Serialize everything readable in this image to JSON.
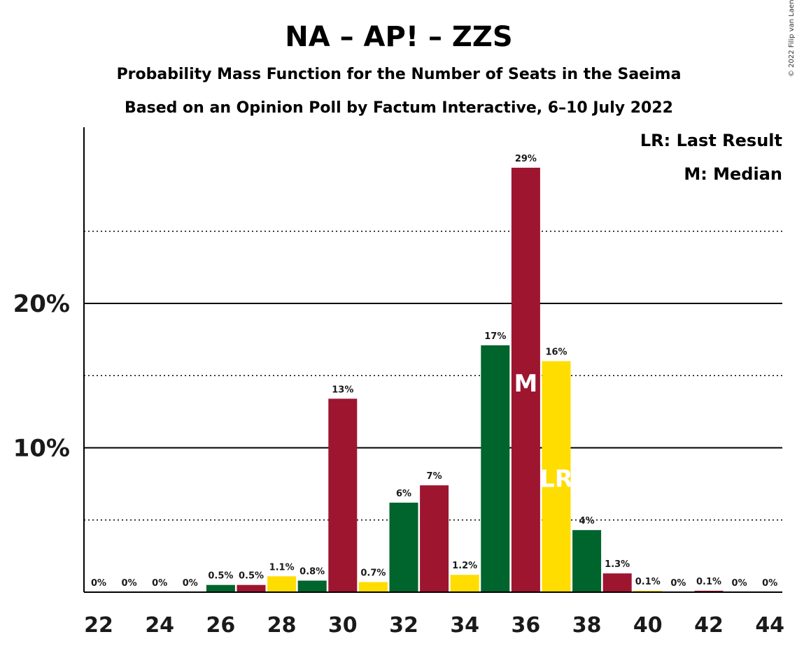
{
  "title": "NA – AP! – ZZS",
  "subtitle1": "Probability Mass Function for the Number of Seats in the Saeima",
  "subtitle2": "Based on an Opinion Poll by Factum Interactive, 6–10 July 2022",
  "copyright": "© 2022 Filip van Laenen",
  "legend": {
    "lr": "LR: Last Result",
    "m": "M: Median"
  },
  "colors": {
    "green": "#00642D",
    "red": "#9E1530",
    "yellow": "#FFDD00",
    "axis": "#000000",
    "grid": "#000000"
  },
  "chart_data": {
    "type": "bar",
    "x": [
      22,
      23,
      24,
      25,
      26,
      27,
      28,
      29,
      30,
      31,
      32,
      33,
      34,
      35,
      36,
      37,
      38,
      39,
      40,
      41,
      42,
      43,
      44
    ],
    "values": [
      0,
      0,
      0,
      0,
      0.5,
      0.5,
      1.1,
      0.8,
      13.4,
      0.7,
      6.2,
      7.4,
      1.2,
      17.1,
      29.4,
      16,
      4.3,
      1.3,
      0.1,
      0,
      0.1,
      0,
      0
    ],
    "labels": [
      "0%",
      "0%",
      "0%",
      "0%",
      "0.5%",
      "0.5%",
      "1.1%",
      "0.8%",
      "13%",
      "0.7%",
      "6%",
      "7%",
      "1.2%",
      "17%",
      "29%",
      "16%",
      "4%",
      "1.3%",
      "0.1%",
      "0%",
      "0.1%",
      "0%",
      "0%"
    ],
    "bar_colors": [
      "green",
      "red",
      "yellow",
      "green",
      "green",
      "red",
      "yellow",
      "green",
      "red",
      "yellow",
      "green",
      "red",
      "yellow",
      "green",
      "red",
      "yellow",
      "green",
      "red",
      "yellow",
      "green",
      "red",
      "yellow",
      "green"
    ],
    "xticks": [
      22,
      24,
      26,
      28,
      30,
      32,
      34,
      36,
      38,
      40,
      42,
      44
    ],
    "yticks": [
      {
        "value": 10,
        "label": "10%"
      },
      {
        "value": 20,
        "label": "20%"
      }
    ],
    "ygrid_dotted": [
      5,
      15,
      25
    ],
    "ylim": [
      0,
      31
    ],
    "median": {
      "x": 36,
      "label": "M"
    },
    "last_result": {
      "x": 37,
      "label": "LR"
    }
  }
}
